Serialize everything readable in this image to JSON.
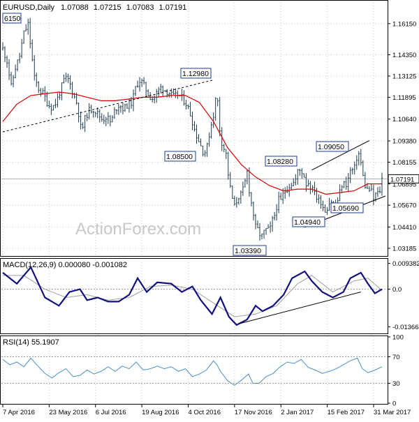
{
  "chart_data": [
    {
      "type": "candlestick",
      "header": {
        "symbol": "EURUSD,Daily",
        "open": "1.07088",
        "high": "1.07215",
        "low": "1.07083",
        "close": "1.07191"
      },
      "y_ticks": [
        "1.16150",
        "1.14350",
        "1.13125",
        "1.11895",
        "1.10640",
        "1.09380",
        "1.08155",
        "1.06895",
        "1.05670",
        "1.04410",
        "1.03185"
      ],
      "ylim": [
        1.0278,
        1.1735
      ],
      "current_price_label": "1.07191",
      "price_labels": [
        "6150",
        "1.12980",
        "1.08500",
        "1.08280",
        "1.09050",
        "1.05690",
        "1.04940",
        "1.03390"
      ],
      "price_series": [
        [
          0,
          1.147
        ],
        [
          6,
          1.14
        ],
        [
          12,
          1.125
        ],
        [
          18,
          1.136
        ],
        [
          24,
          1.143
        ],
        [
          30,
          1.156
        ],
        [
          36,
          1.161
        ],
        [
          40,
          1.147
        ],
        [
          45,
          1.13
        ],
        [
          52,
          1.123
        ],
        [
          58,
          1.121
        ],
        [
          64,
          1.115
        ],
        [
          70,
          1.113
        ],
        [
          76,
          1.116
        ],
        [
          82,
          1.123
        ],
        [
          88,
          1.13
        ],
        [
          94,
          1.129
        ],
        [
          100,
          1.121
        ],
        [
          106,
          1.115
        ],
        [
          112,
          1.099
        ],
        [
          118,
          1.108
        ],
        [
          124,
          1.112
        ],
        [
          130,
          1.112
        ],
        [
          136,
          1.109
        ],
        [
          142,
          1.106
        ],
        [
          148,
          1.108
        ],
        [
          154,
          1.104
        ],
        [
          160,
          1.112
        ],
        [
          166,
          1.115
        ],
        [
          172,
          1.112
        ],
        [
          178,
          1.115
        ],
        [
          184,
          1.116
        ],
        [
          190,
          1.126
        ],
        [
          196,
          1.129
        ],
        [
          202,
          1.125
        ],
        [
          208,
          1.12
        ],
        [
          214,
          1.118
        ],
        [
          220,
          1.122
        ],
        [
          226,
          1.125
        ],
        [
          232,
          1.123
        ],
        [
          238,
          1.121
        ],
        [
          244,
          1.119
        ],
        [
          250,
          1.121
        ],
        [
          256,
          1.118
        ],
        [
          262,
          1.115
        ],
        [
          268,
          1.108
        ],
        [
          274,
          1.099
        ],
        [
          280,
          1.093
        ],
        [
          286,
          1.087
        ],
        [
          290,
          1.088
        ],
        [
          295,
          1.1
        ],
        [
          300,
          1.109
        ],
        [
          305,
          1.123
        ],
        [
          308,
          1.103
        ],
        [
          312,
          1.093
        ],
        [
          318,
          1.086
        ],
        [
          322,
          1.071
        ],
        [
          326,
          1.062
        ],
        [
          330,
          1.056
        ],
        [
          336,
          1.062
        ],
        [
          340,
          1.063
        ],
        [
          344,
          1.068
        ],
        [
          348,
          1.076
        ],
        [
          352,
          1.062
        ],
        [
          356,
          1.054
        ],
        [
          360,
          1.044
        ],
        [
          364,
          1.042
        ],
        [
          368,
          1.038
        ],
        [
          372,
          1.041
        ],
        [
          376,
          1.043
        ],
        [
          380,
          1.042
        ],
        [
          384,
          1.048
        ],
        [
          388,
          1.052
        ],
        [
          392,
          1.06
        ],
        [
          396,
          1.059
        ],
        [
          400,
          1.064
        ],
        [
          404,
          1.066
        ],
        [
          410,
          1.069
        ],
        [
          416,
          1.07
        ],
        [
          420,
          1.076
        ],
        [
          424,
          1.077
        ],
        [
          428,
          1.075
        ],
        [
          432,
          1.069
        ],
        [
          436,
          1.07
        ],
        [
          440,
          1.065
        ],
        [
          444,
          1.066
        ],
        [
          448,
          1.059
        ],
        [
          452,
          1.06
        ],
        [
          456,
          1.056
        ],
        [
          460,
          1.053
        ],
        [
          464,
          1.058
        ],
        [
          468,
          1.059
        ],
        [
          472,
          1.056
        ],
        [
          476,
          1.058
        ],
        [
          480,
          1.064
        ],
        [
          484,
          1.07
        ],
        [
          488,
          1.068
        ],
        [
          492,
          1.072
        ],
        [
          496,
          1.078
        ],
        [
          500,
          1.076
        ],
        [
          504,
          1.084
        ],
        [
          508,
          1.087
        ],
        [
          512,
          1.075
        ],
        [
          516,
          1.068
        ],
        [
          520,
          1.065
        ],
        [
          524,
          1.066
        ],
        [
          528,
          1.06
        ],
        [
          532,
          1.064
        ],
        [
          536,
          1.063
        ],
        [
          540,
          1.0719
        ]
      ],
      "ma_series": [
        [
          0,
          1.105
        ],
        [
          20,
          1.115
        ],
        [
          40,
          1.12
        ],
        [
          60,
          1.121
        ],
        [
          80,
          1.122
        ],
        [
          100,
          1.121
        ],
        [
          120,
          1.119
        ],
        [
          140,
          1.117
        ],
        [
          160,
          1.117
        ],
        [
          180,
          1.118
        ],
        [
          200,
          1.119
        ],
        [
          220,
          1.119
        ],
        [
          240,
          1.12
        ],
        [
          260,
          1.12
        ],
        [
          280,
          1.116
        ],
        [
          300,
          1.105
        ],
        [
          320,
          1.09
        ],
        [
          340,
          1.08
        ],
        [
          360,
          1.073
        ],
        [
          380,
          1.068
        ],
        [
          400,
          1.065
        ],
        [
          420,
          1.066
        ],
        [
          440,
          1.066
        ],
        [
          460,
          1.063
        ],
        [
          480,
          1.064
        ],
        [
          500,
          1.065
        ],
        [
          520,
          1.069
        ],
        [
          540,
          1.069
        ]
      ],
      "trendlines": [
        {
          "from": [
            0,
            1.099
          ],
          "to": [
            300,
            1.129
          ],
          "style": "dashed"
        },
        {
          "from": [
            430,
            1.044
          ],
          "to": [
            545,
            1.062
          ],
          "style": "solid"
        },
        {
          "from": [
            440,
            1.077
          ],
          "to": [
            522,
            1.094
          ],
          "style": "solid"
        }
      ],
      "watermark": "ActionForex.com"
    },
    {
      "type": "line",
      "header": "MACD(12,26,9) 0.000080 -0.001082",
      "y_ticks": [
        "0.009382",
        "0.0",
        "-0.013664"
      ],
      "ylim": [
        -0.0158,
        0.0108
      ],
      "macd_series": [
        [
          0,
          0.006
        ],
        [
          20,
          0.002
        ],
        [
          40,
          0.008
        ],
        [
          60,
          -0.003
        ],
        [
          80,
          -0.006
        ],
        [
          95,
          -0.001
        ],
        [
          110,
          0.0
        ],
        [
          120,
          -0.004
        ],
        [
          135,
          -0.003
        ],
        [
          150,
          -0.0045
        ],
        [
          165,
          -0.0045
        ],
        [
          180,
          -0.002
        ],
        [
          192,
          0.004
        ],
        [
          205,
          -0.001
        ],
        [
          220,
          0.0025
        ],
        [
          240,
          0.002
        ],
        [
          255,
          -0.001
        ],
        [
          270,
          0.001
        ],
        [
          282,
          -0.004
        ],
        [
          298,
          -0.009
        ],
        [
          310,
          -0.003
        ],
        [
          322,
          -0.01
        ],
        [
          333,
          -0.013
        ],
        [
          348,
          -0.011
        ],
        [
          360,
          -0.006
        ],
        [
          370,
          -0.008
        ],
        [
          385,
          -0.006
        ],
        [
          400,
          -0.002
        ],
        [
          412,
          0.004
        ],
        [
          430,
          0.0065
        ],
        [
          440,
          0.003
        ],
        [
          455,
          -0.001
        ],
        [
          470,
          -0.003
        ],
        [
          485,
          -0.001
        ],
        [
          495,
          0.004
        ],
        [
          510,
          0.006
        ],
        [
          520,
          0.002
        ],
        [
          530,
          -0.0015
        ],
        [
          540,
          0.0
        ]
      ],
      "signal_series": [
        [
          0,
          0.005
        ],
        [
          30,
          0.005
        ],
        [
          60,
          0.0
        ],
        [
          90,
          -0.003
        ],
        [
          120,
          -0.002
        ],
        [
          150,
          -0.004
        ],
        [
          180,
          -0.003
        ],
        [
          210,
          0.001
        ],
        [
          240,
          0.0015
        ],
        [
          270,
          0.0
        ],
        [
          300,
          -0.005
        ],
        [
          330,
          -0.01
        ],
        [
          360,
          -0.009
        ],
        [
          390,
          -0.006
        ],
        [
          420,
          0.002
        ],
        [
          440,
          0.005
        ],
        [
          470,
          -0.001
        ],
        [
          500,
          0.003
        ],
        [
          520,
          0.004
        ],
        [
          540,
          -0.0005
        ]
      ],
      "trendlines": [
        {
          "from": [
            337,
            -0.0125
          ],
          "to": [
            510,
            -0.001
          ],
          "style": "solid"
        }
      ]
    },
    {
      "type": "line",
      "header": "RSI(14) 55.1907",
      "y_ticks": [
        "100",
        "70",
        "30",
        "0"
      ],
      "ylim": [
        0,
        100
      ],
      "levels": [
        70,
        30
      ],
      "rsi_series": [
        [
          0,
          66
        ],
        [
          10,
          58
        ],
        [
          20,
          62
        ],
        [
          30,
          55
        ],
        [
          40,
          68
        ],
        [
          50,
          56
        ],
        [
          60,
          45
        ],
        [
          70,
          38
        ],
        [
          80,
          46
        ],
        [
          90,
          52
        ],
        [
          100,
          40
        ],
        [
          110,
          42
        ],
        [
          120,
          50
        ],
        [
          130,
          44
        ],
        [
          140,
          48
        ],
        [
          150,
          55
        ],
        [
          160,
          48
        ],
        [
          170,
          56
        ],
        [
          180,
          52
        ],
        [
          190,
          62
        ],
        [
          200,
          50
        ],
        [
          210,
          52
        ],
        [
          220,
          56
        ],
        [
          230,
          52
        ],
        [
          240,
          55
        ],
        [
          250,
          48
        ],
        [
          260,
          52
        ],
        [
          270,
          40
        ],
        [
          280,
          44
        ],
        [
          290,
          50
        ],
        [
          300,
          64
        ],
        [
          305,
          58
        ],
        [
          310,
          48
        ],
        [
          320,
          34
        ],
        [
          330,
          27
        ],
        [
          340,
          35
        ],
        [
          350,
          44
        ],
        [
          356,
          30
        ],
        [
          365,
          30
        ],
        [
          375,
          40
        ],
        [
          385,
          45
        ],
        [
          395,
          55
        ],
        [
          405,
          62
        ],
        [
          415,
          60
        ],
        [
          425,
          66
        ],
        [
          435,
          54
        ],
        [
          445,
          50
        ],
        [
          455,
          45
        ],
        [
          465,
          48
        ],
        [
          475,
          52
        ],
        [
          485,
          58
        ],
        [
          495,
          64
        ],
        [
          505,
          68
        ],
        [
          512,
          52
        ],
        [
          520,
          46
        ],
        [
          530,
          50
        ],
        [
          540,
          55
        ]
      ]
    }
  ],
  "x_labels": [
    "7 Apr 2016",
    "23 May 2016",
    "6 Jul 2016",
    "19 Aug 2016",
    "4 Oct 2016",
    "17 Nov 2016",
    "2 Jan 2017",
    "15 Feb 2017",
    "31 Mar 2017"
  ],
  "colors": {
    "candles": "#1c3c50",
    "ma": "#d40000",
    "macd": "#101080",
    "signal": "#a0a0a0",
    "rsi": "#4a90c8",
    "grid": "#c8c8c8",
    "current_line": "#999999"
  }
}
